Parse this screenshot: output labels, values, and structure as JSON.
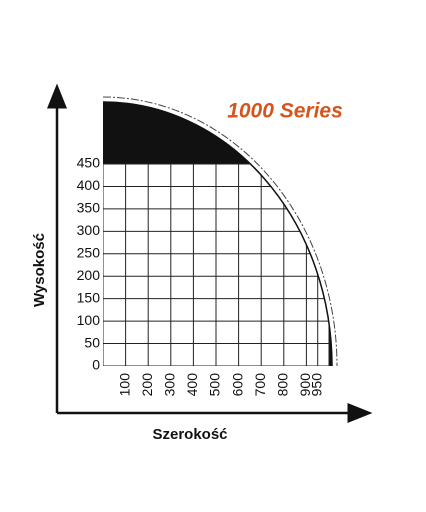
{
  "title": "1000 Series",
  "x_axis": {
    "label": "Szerokość",
    "lim": [
      0,
      1000
    ],
    "ticks": [
      100,
      200,
      300,
      400,
      500,
      600,
      700,
      800,
      900,
      950
    ]
  },
  "y_axis": {
    "label": "Wysokość",
    "lim": [
      0,
      450
    ],
    "ticks": [
      0,
      50,
      100,
      150,
      200,
      250,
      300,
      350,
      400,
      450
    ]
  }
}
